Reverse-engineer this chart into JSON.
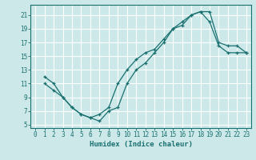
{
  "xlabel": "Humidex (Indice chaleur)",
  "bg_color": "#cce8e8",
  "grid_color": "#ffffff",
  "line_color": "#1a7070",
  "xlim": [
    -0.5,
    23.5
  ],
  "ylim": [
    4.5,
    22.5
  ],
  "xticks": [
    0,
    1,
    2,
    3,
    4,
    5,
    6,
    7,
    8,
    9,
    10,
    11,
    12,
    13,
    14,
    15,
    16,
    17,
    18,
    19,
    20,
    21,
    22,
    23
  ],
  "yticks": [
    5,
    7,
    9,
    11,
    13,
    15,
    17,
    19,
    21
  ],
  "line1_x": [
    1,
    2,
    3,
    4,
    5,
    6,
    7,
    8,
    9,
    10,
    11,
    12,
    13,
    14,
    15,
    16,
    17,
    18,
    19,
    20,
    21,
    22,
    23
  ],
  "line1_y": [
    12,
    11,
    9,
    7.5,
    6.5,
    6,
    5.5,
    7,
    7.5,
    11,
    13,
    14,
    15.5,
    17,
    19,
    19.5,
    21,
    21.5,
    21.5,
    17,
    16.5,
    16.5,
    15.5
  ],
  "line2_x": [
    1,
    2,
    3,
    4,
    5,
    6,
    7,
    8,
    9,
    10,
    11,
    12,
    13,
    14,
    15,
    16,
    17,
    18,
    19,
    20,
    21,
    22,
    23
  ],
  "line2_y": [
    11,
    10,
    9,
    7.5,
    6.5,
    6,
    6.5,
    7.5,
    11,
    13,
    14.5,
    15.5,
    16,
    17.5,
    19,
    20,
    21,
    21.5,
    20,
    16.5,
    15.5,
    15.5,
    15.5
  ],
  "xlabel_fontsize": 6.5,
  "tick_fontsize": 5.5,
  "figwidth": 3.2,
  "figheight": 2.0,
  "dpi": 100
}
